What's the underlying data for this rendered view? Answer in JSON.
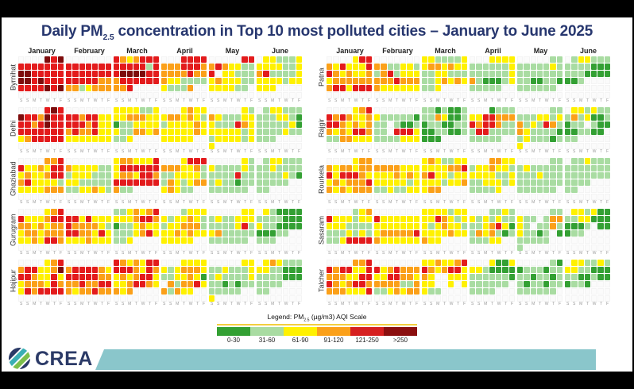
{
  "window": {
    "title_prefix": "Daily PM",
    "title_sub": "2.5",
    "title_rest": " concentration in Top 10 most polluted cities – January to June 2025"
  },
  "legend": {
    "title_prefix": "Legend: PM",
    "title_sub": "2.5",
    "title_rest": " (µg/m3) AQI Scale",
    "items": [
      {
        "label": "0-30",
        "color": "#33a033"
      },
      {
        "label": "31-60",
        "color": "#a9dca2"
      },
      {
        "label": "61-90",
        "color": "#fff100"
      },
      {
        "label": "91-120",
        "color": "#fba019"
      },
      {
        "label": "121-250",
        "color": "#d62020"
      },
      {
        "label": ">250",
        "color": "#8b0f0f"
      }
    ]
  },
  "footer": {
    "brand": "CREA",
    "accent_color": "#8ac6cb",
    "logo_colors": {
      "navy": "#2b3a67",
      "teal": "#3aafb5",
      "green": "#7cbf4b"
    }
  },
  "chart_data": {
    "type": "heatmap",
    "subtype": "daily-calendar-aqi",
    "title": "Daily PM2.5 concentration in Top 10 most polluted cities – January to June 2025",
    "months": [
      "January",
      "February",
      "March",
      "April",
      "May",
      "June"
    ],
    "weekday_letters": [
      "S",
      "S",
      "M",
      "T",
      "W",
      "T",
      "F"
    ],
    "color_scale": {
      "W": "#fbfbfb",
      "E": "#33a033",
      "G": "#a9dca2",
      "Y": "#fff100",
      "O": "#fba019",
      "R": "#e31b1c",
      "D": "#7d0c0c"
    },
    "scale_meaning": {
      "E": "0-30",
      "G": "31-60",
      "Y": "61-90",
      "O": "91-120",
      "R": "121-250",
      "D": ">250",
      "W": "no data"
    },
    "cities": [
      {
        "name": "Byrnihat",
        "panel": "left",
        "months": {
          "January": [
            "WWWWDRD",
            "RRRRRRR",
            "DDRRRRR",
            "DDRDRRR",
            "RRRRDRD",
            "WWWWWWW"
          ],
          "February": [
            "WWWWWWW",
            "RRRRRRR",
            "RRRRRRR",
            "RRRRROO",
            "OOGYOOO",
            "WWWWWWW"
          ],
          "March": [
            "ROYORRR",
            "RRRRRGR",
            "RDDDDRR",
            "ORRRRRR",
            "OORWWWW",
            "WWWWWWW"
          ],
          "April": [
            "WWWRRRR",
            "OOORRRO",
            "OOOOROO",
            "OYYGGGG",
            "YGGGOWW",
            "WWWWWWW"
          ],
          "May": [
            "WWWWWRR",
            "OROYYGG",
            "RWYYGGG",
            "YOYYYGG",
            "YYYYGGW",
            "WWWWWWW"
          ],
          "June": [
            "WYYGGGY",
            "YYYYGGY",
            "ORGGGGY",
            "YYYYGYY",
            "YYYWWWW",
            "WWWWWWW"
          ]
        }
      },
      {
        "name": "Delhi",
        "panel": "left",
        "months": {
          "January": [
            "WWWWRDR",
            "DRRODRR",
            "RRORDRR",
            "RRRRRRR",
            "YORRRRR",
            "WWWWWWW"
          ],
          "February": [
            "WWWWWWW",
            "RRORRYY",
            "RRRORYY",
            "OROORYY",
            "YYYYYYY",
            "WWWWWWW"
          ],
          "March": [
            "YYYYGGY",
            "YYOOOYY",
            "EGGYYYY",
            "YGGOOYO",
            "GGYWWWW",
            "WWWWWWW"
          ],
          "April": [
            "WWWYOYY",
            "YOOYOYG",
            "GYYYYOY",
            "YYYYYOY",
            "YYYYYWW",
            "WWWWWWW"
          ],
          "May": [
            "WWWWWYG",
            "OYGGGYY",
            "YGGGROY",
            "YYYYYGY",
            "GYYYYGY",
            "YWWWWWW"
          ],
          "June": [
            "WGYYGGG",
            "GGGYYGE",
            "GGGGGYE",
            "GGGGYGG",
            "GGGWWWW",
            "WWWWWWW"
          ]
        }
      },
      {
        "name": "Ghaziabad",
        "panel": "left",
        "months": {
          "January": [
            "WWWWOOR",
            "RYYOYRR",
            "YOYYORR",
            "ORYYYYG",
            "YYYYOOO",
            "WWWWWWW"
          ],
          "February": [
            "WWWWWWW",
            "OYYYYGG",
            "GYYYGGG",
            "YYGGGGG",
            "GGYYOYG",
            "WWWWWWW"
          ],
          "March": [
            "YOOYYYR",
            "YRRRRRR",
            "YOOYRRO",
            "RRRRRRR",
            "OGGWWWW",
            "WWWWWWW"
          ],
          "April": [
            "WWWYRRR",
            "OOOYYOG",
            "GGYYYYG",
            "GOYGYOO",
            "YOYGGWW",
            "WWWWWWW"
          ],
          "May": [
            "WWWWWYG",
            "YGGGGYG",
            "GGGGRGG",
            "GYGGEGG",
            "GGGGGGW",
            "WWWWWWW"
          ],
          "June": [
            "WGYYGGG",
            "GGYGGGG",
            "GGGGYGE",
            "GGGGGWW",
            "GGWWWWW",
            "WWWWWWW"
          ]
        }
      },
      {
        "name": "Gurugram",
        "panel": "left",
        "months": {
          "January": [
            "WWWWYOR",
            "RYYYORR",
            "OOYOYOO",
            "YOOYOOO",
            "YYOYRRO",
            "WWWWWWW"
          ],
          "February": [
            "WWWWWWW",
            "RRYRYYY",
            "ROOOOYG",
            "RROOYRY",
            "YYYOYYY",
            "WWWWWWW"
          ],
          "March": [
            "GGYOYOR",
            "YYYORRO",
            "EGGYOYY",
            "GGGYORY",
            "GGYWWWW",
            "WWWWWWW"
          ],
          "April": [
            "WWWGYYY",
            "YGYYOYG",
            "GYYOOOG",
            "YYOYOYY",
            "YYYYYWW",
            "WWWWWWW"
          ],
          "May": [
            "WWWWWYY",
            "GYGGYYY",
            "GGGGYRG",
            "YOGGGGG",
            "GGGGGGW",
            "WWWWWWW"
          ],
          "June": [
            "WYGEEEE",
            "GGGGEEE",
            "YGGEEEE",
            "EEEGGWW",
            "GGGWWWW",
            "WWWWWWW"
          ]
        }
      },
      {
        "name": "Hajipur",
        "panel": "left",
        "months": {
          "January": [
            "WWWWYOR",
            "ORRYYOD",
            "RROYYRY",
            "YOOOYRO",
            "YRORRRR",
            "WWWWWWW"
          ],
          "February": [
            "WWWWWWW",
            "ORRRROY",
            "RRRRROO",
            "OOROORR",
            "OYOOROO",
            "WWWWWWW"
          ],
          "March": [
            "ROYOYRR",
            "RRROYRO",
            "YOYORRY",
            "YYORROY",
            "OYOWWWW",
            "WWWWWWW"
          ],
          "April": [
            "WWWYYYY",
            "YGYOOOY",
            "GGYYOYE",
            "WOGOORY",
            "OGOYYWW",
            "WWWWWWW"
          ],
          "May": [
            "WWWWWYY",
            "GGYGGGY",
            "GYGGGGY",
            "GGEGEGG",
            "GGGGGWW",
            "YWWWWWW"
          ],
          "June": [
            "WYOYGGG",
            "YYGGEEE",
            "GGGGEEE",
            "GGGGWWW",
            "GGWWWWW",
            "WWWWWWW"
          ]
        }
      },
      {
        "name": "Patna",
        "panel": "right",
        "months": {
          "January": [
            "WWWWYRR",
            "OYRYYYR",
            "ROYOYYO",
            "YOOOOOO",
            "ORRYRRR",
            "WWWWWWW"
          ],
          "February": [
            "WWWWWWW",
            "OOGGYYG",
            "GORGYYY",
            "OOOROOO",
            "OYYYYYY",
            "WWWWWWW"
          ],
          "March": [
            "YYGGGGY",
            "YOOYOYY",
            "GGYYGGG",
            "GGYOYOY",
            "GGYWWWW",
            "WWWWWWW"
          ],
          "April": [
            "WWWYYYY",
            "GGGGGGY",
            "GGGGGGY",
            "OGEEEGY",
            "GGGGGWW",
            "WWWWWWW"
          ],
          "May": [
            "WWWWWGG",
            "GGGGGYG",
            "GGGGGGG",
            "GGEEGGE",
            "GGGGGGW",
            "WWWWWWW"
          ],
          "June": [
            "WGYYGGG",
            "GGGGEEE",
            "GGGEEEE",
            "EEGWWWW",
            "WWWWWWW",
            "WWWWWWW"
          ]
        }
      },
      {
        "name": "Rajgir",
        "panel": "right",
        "months": {
          "January": [
            "WWWWYOR",
            "ROROYYO",
            "RROYOYO",
            "OYOYRRO",
            "GGOOYYY",
            "WWWWWWW"
          ],
          "February": [
            "WWWWWWW",
            "YGGGGGE",
            "GGWGEEG",
            "GGWRRRY",
            "GGGGYYY",
            "WWWWWWW"
          ],
          "March": [
            "GGEGEEG",
            "GGOYEEG",
            "EGGEEGG",
            "EEGGEEG",
            "EEEWWWW",
            "WWWWWWW"
          ],
          "April": [
            "WWWEGGG",
            "YYRROOO",
            "RORROGG",
            "GRRGGGG",
            "GGGGGWW",
            "WWWWWWW"
          ],
          "May": [
            "WWWWWGG",
            "GGGYYGY",
            "OGYGROG",
            "OYGGGGE",
            "GYGGGEG",
            "YWWWWWW"
          ],
          "June": [
            "WYYGYGG",
            "GOGYEEG",
            "EGGWGEE",
            "EEGGEEW",
            "GGWWWWW",
            "WWWWWWW"
          ]
        }
      },
      {
        "name": "Rourkela",
        "panel": "right",
        "months": {
          "January": [
            "WWWWYOO",
            "OYOOYOO",
            "RYRRROY",
            "YOYOOOR",
            "OYOYOOO",
            "WWWWWWW"
          ],
          "February": [
            "WWWWWWW",
            "OOOOYYY",
            "YYYOYOY",
            "YYYYYGY",
            "GGYGGYY",
            "WWWWWWW"
          ],
          "March": [
            "YOYGGYY",
            "YYYYOOR",
            "ORYYGYY",
            "YYYGYYO",
            "YOOWWWW",
            "WWWWWWW"
          ],
          "April": [
            "WWWOOYY",
            "GYYOYYG",
            "YYYYGGY",
            "GGYYYGY",
            "GGGGYWW",
            "WWWWWWW"
          ],
          "May": [
            "WWWWWGG",
            "GYGGGGG",
            "GGGYGGG",
            "GGGGGGG",
            "GGGGGGW",
            "WWWWWWW"
          ],
          "June": [
            "WGGYGGG",
            "GGGGGGG",
            "GGGGGGG",
            "GGGGWWW",
            "GGWWWWW",
            "WWWWWWW"
          ]
        }
      },
      {
        "name": "Sasaram",
        "panel": "right",
        "months": {
          "January": [
            "WWWWGYO",
            "RYYYGYY",
            "YYYGGGG",
            "GGGYGYG",
            "GGYRRRR",
            "WWWWWWW"
          ],
          "February": [
            "WWWWWWW",
            "RYYYYYY",
            "YYYYYYY",
            "YOOOOOR",
            "OYYYYYY",
            "WWWWWWW"
          ],
          "March": [
            "YYYYGYY",
            "YYROYGY",
            "YGYOYYG",
            "YYYYOYY",
            "OYYWWWW",
            "WWWWWWW"
          ],
          "April": [
            "WWWGGYG",
            "YGYGYGG",
            "GGYORYE",
            "GOYOGEG",
            "GGGYYWW",
            "WWWWWWW"
          ],
          "May": [
            "WWWWWGG",
            "YGGWGOO",
            "YGWGGOG",
            "YGGEGWE",
            "GGGGGWW",
            "GWWWWWW"
          ],
          "June": [
            "WYYGYEE",
            "GGYYEEE",
            "EEEGWEE",
            "EGGWWWW",
            "WWWWWWW",
            "WWWWWWW"
          ]
        }
      },
      {
        "name": "Talcher",
        "panel": "right",
        "months": {
          "January": [
            "WWWWOOR",
            "RORRYYR",
            "OOOYYRR",
            "ROYORRO",
            "OOOYYYR",
            "WWWWWWW"
          ],
          "February": [
            "WWWWWWW",
            "RYOROOO",
            "YYRROOY",
            "OOOOGGO",
            "GGYOYOO",
            "WWWWWWW"
          ],
          "March": [
            "YYOYYOR",
            "ROYORRY",
            "OYWWYYY",
            "YYWWYWY",
            "YGGWWWW",
            "WWWWWWW"
          ],
          "April": [
            "WWWYEEY",
            "YYGEEEE",
            "GGGGGGE",
            "GGGGGGW",
            "GGGGWWW",
            "WWWWWWW"
          ],
          "May": [
            "WWWWWGE",
            "EGGGEGG",
            "GGEGGEG",
            "GEGGEGG",
            "GGGGGGW",
            "WWWWWWW"
          ],
          "June": [
            "WYYGGYG",
            "YYGGEEE",
            "GGEEGEE",
            "EGGEWWW",
            "WWWWWWW",
            "WWWWWWW"
          ]
        }
      }
    ]
  }
}
